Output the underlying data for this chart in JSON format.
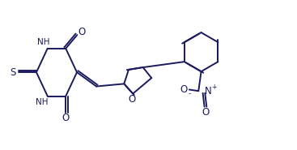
{
  "bg_color": "#ffffff",
  "line_color": "#1a1a5e",
  "line_width": 1.4,
  "font_size": 7.5,
  "figsize": [
    3.67,
    1.85
  ],
  "dpi": 100,
  "xlim": [
    0,
    10.5
  ],
  "ylim": [
    0,
    5.5
  ]
}
